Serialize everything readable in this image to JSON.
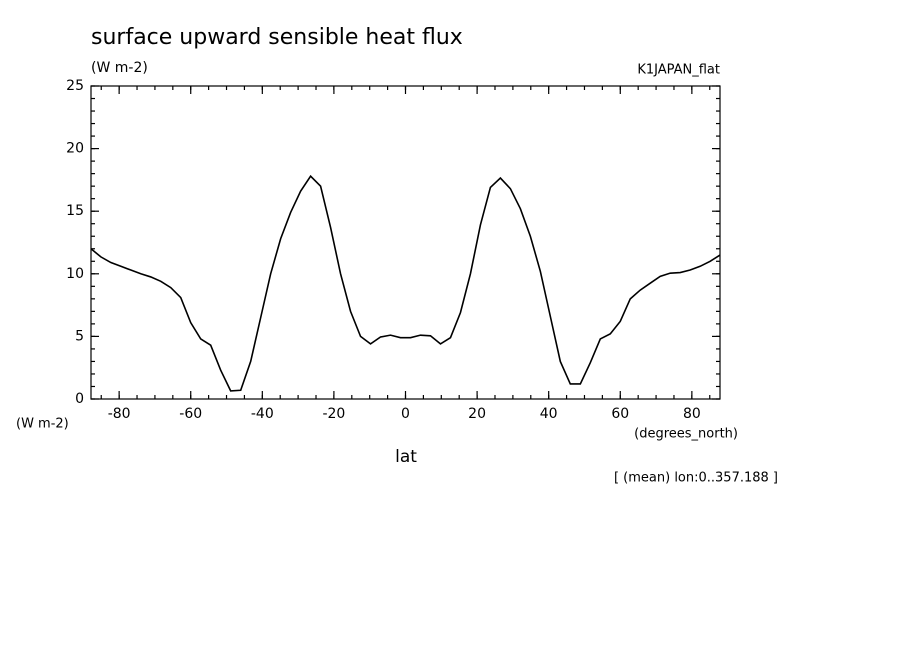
{
  "chart_data": {
    "type": "line",
    "title": "surface upward sensible heat flux",
    "subtitle": "(W m-2)",
    "annotation": "K1JAPAN_flat",
    "y_label": "(W m-2)",
    "x_unit": "(degrees_north)",
    "x_label": "lat",
    "note": "[ (mean) lon:0..357.188 ]",
    "x": [
      -87.86,
      -85.1,
      -82.31,
      -79.53,
      -76.74,
      -73.95,
      -71.16,
      -68.37,
      -65.58,
      -62.79,
      -60.0,
      -57.21,
      -54.42,
      -51.63,
      -48.84,
      -46.04,
      -43.25,
      -40.46,
      -37.67,
      -34.88,
      -32.09,
      -29.3,
      -26.51,
      -23.72,
      -20.93,
      -18.14,
      -15.35,
      -12.56,
      -9.77,
      -6.98,
      -4.19,
      -1.4,
      1.4,
      4.19,
      6.98,
      9.77,
      12.56,
      15.35,
      18.14,
      20.93,
      23.72,
      26.51,
      29.3,
      32.09,
      34.88,
      37.67,
      40.46,
      43.25,
      46.04,
      48.84,
      51.63,
      54.42,
      57.21,
      60.0,
      62.79,
      65.58,
      68.37,
      71.16,
      73.95,
      76.74,
      79.53,
      82.31,
      85.1,
      87.86
    ],
    "series": [
      {
        "color": "#000000",
        "values": [
          12.0,
          11.35,
          10.9,
          10.6,
          10.3,
          10.0,
          9.75,
          9.4,
          8.9,
          8.1,
          6.1,
          4.8,
          4.3,
          2.3,
          0.65,
          0.7,
          3.0,
          6.5,
          10.0,
          12.8,
          14.9,
          16.6,
          17.8,
          17.0,
          13.7,
          10.0,
          7.0,
          5.0,
          4.4,
          4.95,
          5.1,
          4.9,
          4.9,
          5.1,
          5.05,
          4.4,
          4.9,
          6.9,
          10.0,
          13.9,
          16.9,
          17.65,
          16.8,
          15.2,
          13.0,
          10.2,
          6.6,
          3.0,
          1.2,
          1.2,
          2.9,
          4.8,
          5.2,
          6.2,
          8.0,
          8.7,
          9.25,
          9.8,
          10.05,
          10.1,
          10.3,
          10.6,
          11.0,
          11.5
        ]
      }
    ],
    "xlim": [
      -87.86,
      87.86
    ],
    "xticks": [
      -80,
      -60,
      -40,
      -20,
      0,
      20,
      40,
      60,
      80
    ],
    "ylim": [
      0,
      25
    ],
    "yticks": [
      0,
      5,
      10,
      15,
      20,
      25
    ],
    "grid": false
  }
}
